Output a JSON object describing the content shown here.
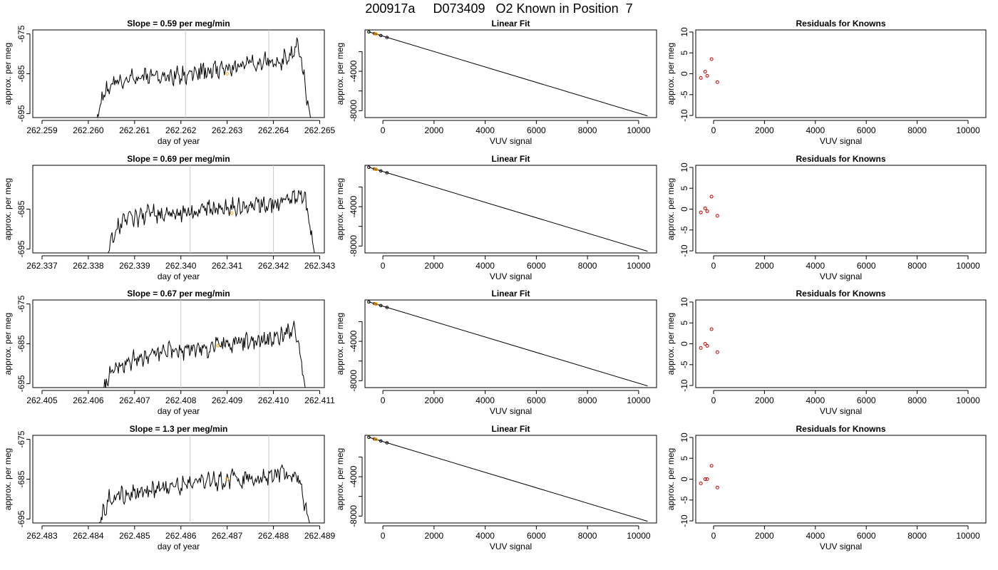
{
  "title": "200917a     D073409   O2 Known in Position  7",
  "colors": {
    "trace": "#000000",
    "vline": "#c8c8c8",
    "known_marker": "#ffa500",
    "residual": "#cc0000",
    "axis": "#000000"
  },
  "chart_data": [
    {
      "type": "line",
      "panel": "timeseries",
      "title": "Slope =  0.59  per meg/min",
      "xlabel": "day of year",
      "ylabel": "approx. per meg",
      "xlim": [
        262.2588,
        262.2651
      ],
      "ylim": [
        -696,
        -674
      ],
      "xticks": [
        262.259,
        262.26,
        262.261,
        262.262,
        262.263,
        262.264,
        262.265
      ],
      "xtick_labels": [
        "262.259",
        "262.260",
        "262.261",
        "262.262",
        "262.263",
        "262.264",
        "262.265"
      ],
      "yticks": [
        -675,
        -685,
        -695
      ],
      "ytick_labels": [
        "-675",
        "-685",
        "-695"
      ],
      "vlines": [
        262.2621,
        262.2639
      ],
      "known_marker": {
        "x": 262.263,
        "y": -685
      },
      "trace_x_range": [
        262.2601,
        262.2648
      ],
      "trace_knots_y": [
        -700,
        -689,
        -687.5,
        -686.5,
        -685.5,
        -685.5,
        -686,
        -685.5,
        -685.5,
        -684.5,
        -684,
        -684,
        -683.5,
        -683,
        -682,
        -681.5,
        -682,
        -681,
        -678,
        -696
      ]
    },
    {
      "type": "line",
      "panel": "linear_fit",
      "title": "Linear Fit",
      "xlabel": "VUV signal",
      "ylabel": "approx. per meg",
      "xlim": [
        -700,
        10700
      ],
      "ylim": [
        -8700,
        200
      ],
      "xticks": [
        0,
        2000,
        4000,
        6000,
        8000,
        10000
      ],
      "xtick_labels": [
        "0",
        "2000",
        "4000",
        "6000",
        "8000",
        "10000"
      ],
      "yticks": [
        -4000,
        -8000
      ],
      "ytick_labels": [
        "-4000",
        "-8000"
      ],
      "ytick_minor": [
        -2000,
        -6000
      ],
      "fit_line": {
        "x": [
          -550,
          10350
        ],
        "y": [
          0,
          -8530
        ]
      },
      "points": {
        "x": [
          -550,
          -330,
          -270,
          -80,
          160
        ],
        "y": [
          0,
          -170,
          -210,
          -370,
          -560
        ]
      },
      "known_points": {
        "x": [
          -300,
          -260
        ],
        "y": [
          -190,
          -220
        ]
      }
    },
    {
      "type": "scatter",
      "panel": "residuals",
      "title": "Residuals for Knowns",
      "xlabel": "VUV signal",
      "ylabel": "approx. per meg",
      "xlim": [
        -700,
        10700
      ],
      "ylim": [
        -10.5,
        10.5
      ],
      "xticks": [
        0,
        2000,
        4000,
        6000,
        8000,
        10000
      ],
      "xtick_labels": [
        "0",
        "2000",
        "4000",
        "6000",
        "8000",
        "10000"
      ],
      "yticks": [
        10,
        5,
        0,
        -5,
        -10
      ],
      "ytick_labels": [
        "10",
        "5",
        "0",
        "-5",
        "-10"
      ],
      "points": {
        "x": [
          -500,
          -330,
          -250,
          -80,
          150
        ],
        "y": [
          -1,
          0.5,
          -0.5,
          3.5,
          -2
        ]
      }
    },
    {
      "type": "line",
      "panel": "timeseries",
      "title": "Slope =  0.69  per meg/min",
      "xlabel": "day of year",
      "ylabel": "approx. per meg",
      "xlim": [
        262.3368,
        262.3431
      ],
      "ylim": [
        -696,
        -674
      ],
      "xticks": [
        262.337,
        262.338,
        262.339,
        262.34,
        262.341,
        262.342,
        262.343
      ],
      "xtick_labels": [
        "262.337",
        "262.338",
        "262.339",
        "262.340",
        "262.341",
        "262.342",
        "262.343"
      ],
      "yticks": [
        -685,
        -695
      ],
      "ytick_labels": [
        "-685",
        "-695"
      ],
      "vlines": [
        262.3402,
        262.342
      ],
      "known_marker": {
        "x": 262.3411,
        "y": -686
      },
      "trace_x_range": [
        262.3384,
        262.3429
      ],
      "trace_knots_y": [
        -697,
        -689,
        -688,
        -687,
        -686,
        -686.5,
        -686,
        -686,
        -685.5,
        -685,
        -685,
        -684.5,
        -684.5,
        -684,
        -684,
        -683.5,
        -683,
        -682.5,
        -681,
        -697
      ]
    },
    {
      "type": "line",
      "panel": "linear_fit",
      "title": "Linear Fit",
      "xlabel": "VUV signal",
      "ylabel": "approx. per meg",
      "xlim": [
        -700,
        10700
      ],
      "ylim": [
        -8700,
        200
      ],
      "xticks": [
        0,
        2000,
        4000,
        6000,
        8000,
        10000
      ],
      "xtick_labels": [
        "0",
        "2000",
        "4000",
        "6000",
        "8000",
        "10000"
      ],
      "yticks": [
        -4000,
        -8000
      ],
      "ytick_labels": [
        "-4000",
        "-8000"
      ],
      "ytick_minor": [
        -2000,
        -6000
      ],
      "fit_line": {
        "x": [
          -550,
          10350
        ],
        "y": [
          0,
          -8530
        ]
      },
      "points": {
        "x": [
          -550,
          -330,
          -270,
          -80,
          160
        ],
        "y": [
          0,
          -170,
          -210,
          -370,
          -560
        ]
      },
      "known_points": {
        "x": [
          -300,
          -260
        ],
        "y": [
          -190,
          -220
        ]
      }
    },
    {
      "type": "scatter",
      "panel": "residuals",
      "title": "Residuals for Knowns",
      "xlabel": "VUV signal",
      "ylabel": "approx. per meg",
      "xlim": [
        -700,
        10700
      ],
      "ylim": [
        -10.5,
        10.5
      ],
      "xticks": [
        0,
        2000,
        4000,
        6000,
        8000,
        10000
      ],
      "xtick_labels": [
        "0",
        "2000",
        "4000",
        "6000",
        "8000",
        "10000"
      ],
      "yticks": [
        10,
        5,
        0,
        -5,
        -10
      ],
      "ytick_labels": [
        "10",
        "5",
        "0",
        "-5",
        "-10"
      ],
      "points": {
        "x": [
          -500,
          -330,
          -250,
          -80,
          150
        ],
        "y": [
          -0.8,
          0.2,
          -0.5,
          3,
          -1.6
        ]
      }
    },
    {
      "type": "line",
      "panel": "timeseries",
      "title": "Slope =  0.67  per meg/min",
      "xlabel": "day of year",
      "ylabel": "approx. per meg",
      "xlim": [
        262.4048,
        262.4111
      ],
      "ylim": [
        -696,
        -674
      ],
      "xticks": [
        262.405,
        262.406,
        262.407,
        262.408,
        262.409,
        262.41,
        262.411
      ],
      "xtick_labels": [
        "262.405",
        "262.406",
        "262.407",
        "262.408",
        "262.409",
        "262.410",
        "262.411"
      ],
      "yticks": [
        -675,
        -685,
        -695
      ],
      "ytick_labels": [
        "-675",
        "-685",
        "-695"
      ],
      "vlines": [
        262.408,
        262.4097
      ],
      "known_marker": {
        "x": 262.4088,
        "y": -685.5
      },
      "trace_x_range": [
        262.4063,
        262.4107
      ],
      "trace_knots_y": [
        -697,
        -691,
        -690,
        -689,
        -688,
        -687.5,
        -687,
        -687,
        -686.5,
        -686,
        -686,
        -685.5,
        -685,
        -684.5,
        -684.5,
        -684,
        -683.5,
        -683,
        -680,
        -697
      ]
    },
    {
      "type": "line",
      "panel": "linear_fit",
      "title": "Linear Fit",
      "xlabel": "VUV signal",
      "ylabel": "approx. per meg",
      "xlim": [
        -700,
        10700
      ],
      "ylim": [
        -8700,
        200
      ],
      "xticks": [
        0,
        2000,
        4000,
        6000,
        8000,
        10000
      ],
      "xtick_labels": [
        "0",
        "2000",
        "4000",
        "6000",
        "8000",
        "10000"
      ],
      "yticks": [
        -4000,
        -8000
      ],
      "ytick_labels": [
        "-4000",
        "-8000"
      ],
      "ytick_minor": [
        -2000,
        -6000
      ],
      "fit_line": {
        "x": [
          -550,
          10350
        ],
        "y": [
          0,
          -8530
        ]
      },
      "points": {
        "x": [
          -550,
          -330,
          -270,
          -80,
          160
        ],
        "y": [
          0,
          -170,
          -210,
          -370,
          -560
        ]
      },
      "known_points": {
        "x": [
          -300,
          -260
        ],
        "y": [
          -190,
          -220
        ]
      }
    },
    {
      "type": "scatter",
      "panel": "residuals",
      "title": "Residuals for Knowns",
      "xlabel": "VUV signal",
      "ylabel": "approx. per meg",
      "xlim": [
        -700,
        10700
      ],
      "ylim": [
        -10.5,
        10.5
      ],
      "xticks": [
        0,
        2000,
        4000,
        6000,
        8000,
        10000
      ],
      "xtick_labels": [
        "0",
        "2000",
        "4000",
        "6000",
        "8000",
        "10000"
      ],
      "yticks": [
        10,
        5,
        0,
        -5,
        -10
      ],
      "ytick_labels": [
        "10",
        "5",
        "0",
        "-5",
        "-10"
      ],
      "points": {
        "x": [
          -500,
          -330,
          -250,
          -80,
          150
        ],
        "y": [
          -1,
          0,
          -0.5,
          3.5,
          -2
        ]
      }
    },
    {
      "type": "line",
      "panel": "timeseries",
      "title": "Slope =  1.3  per meg/min",
      "xlabel": "day of year",
      "ylabel": "approx. per meg",
      "xlim": [
        262.4828,
        262.4891
      ],
      "ylim": [
        -696,
        -674
      ],
      "xticks": [
        262.483,
        262.484,
        262.485,
        262.486,
        262.487,
        262.488,
        262.489
      ],
      "xtick_labels": [
        "262.483",
        "262.484",
        "262.485",
        "262.486",
        "262.487",
        "262.488",
        "262.489"
      ],
      "yticks": [
        -675,
        -685,
        -695
      ],
      "ytick_labels": [
        "-675",
        "-685",
        "-695"
      ],
      "vlines": [
        262.4862,
        262.4879
      ],
      "known_marker": {
        "x": 262.487,
        "y": -685
      },
      "trace_x_range": [
        262.4842,
        262.4888
      ],
      "trace_knots_y": [
        -697,
        -690,
        -689,
        -688.5,
        -688,
        -687.5,
        -687,
        -687,
        -686.5,
        -686,
        -685.5,
        -685.5,
        -685,
        -685,
        -684.5,
        -684.5,
        -684,
        -684,
        -685,
        -697
      ]
    },
    {
      "type": "line",
      "panel": "linear_fit",
      "title": "Linear Fit",
      "xlabel": "VUV signal",
      "ylabel": "approx. per meg",
      "xlim": [
        -700,
        10700
      ],
      "ylim": [
        -8700,
        200
      ],
      "xticks": [
        0,
        2000,
        4000,
        6000,
        8000,
        10000
      ],
      "xtick_labels": [
        "0",
        "2000",
        "4000",
        "6000",
        "8000",
        "10000"
      ],
      "yticks": [
        -4000,
        -8000
      ],
      "ytick_labels": [
        "-4000",
        "-8000"
      ],
      "ytick_minor": [
        -2000,
        -6000
      ],
      "fit_line": {
        "x": [
          -550,
          10350
        ],
        "y": [
          0,
          -8530
        ]
      },
      "points": {
        "x": [
          -550,
          -330,
          -270,
          -80,
          160
        ],
        "y": [
          0,
          -170,
          -210,
          -370,
          -560
        ]
      },
      "known_points": {
        "x": [
          -300,
          -260
        ],
        "y": [
          -190,
          -220
        ]
      }
    },
    {
      "type": "scatter",
      "panel": "residuals",
      "title": "Residuals for Knowns",
      "xlabel": "VUV signal",
      "ylabel": "approx. per meg",
      "xlim": [
        -700,
        10700
      ],
      "ylim": [
        -10.5,
        10.5
      ],
      "xticks": [
        0,
        2000,
        4000,
        6000,
        8000,
        10000
      ],
      "xtick_labels": [
        "0",
        "2000",
        "4000",
        "6000",
        "8000",
        "10000"
      ],
      "yticks": [
        10,
        5,
        0,
        -5,
        -10
      ],
      "ytick_labels": [
        "10",
        "5",
        "0",
        "-5",
        "-10"
      ],
      "points": {
        "x": [
          -500,
          -330,
          -250,
          -80,
          150
        ],
        "y": [
          -1,
          0,
          0,
          3.2,
          -2
        ]
      }
    }
  ]
}
